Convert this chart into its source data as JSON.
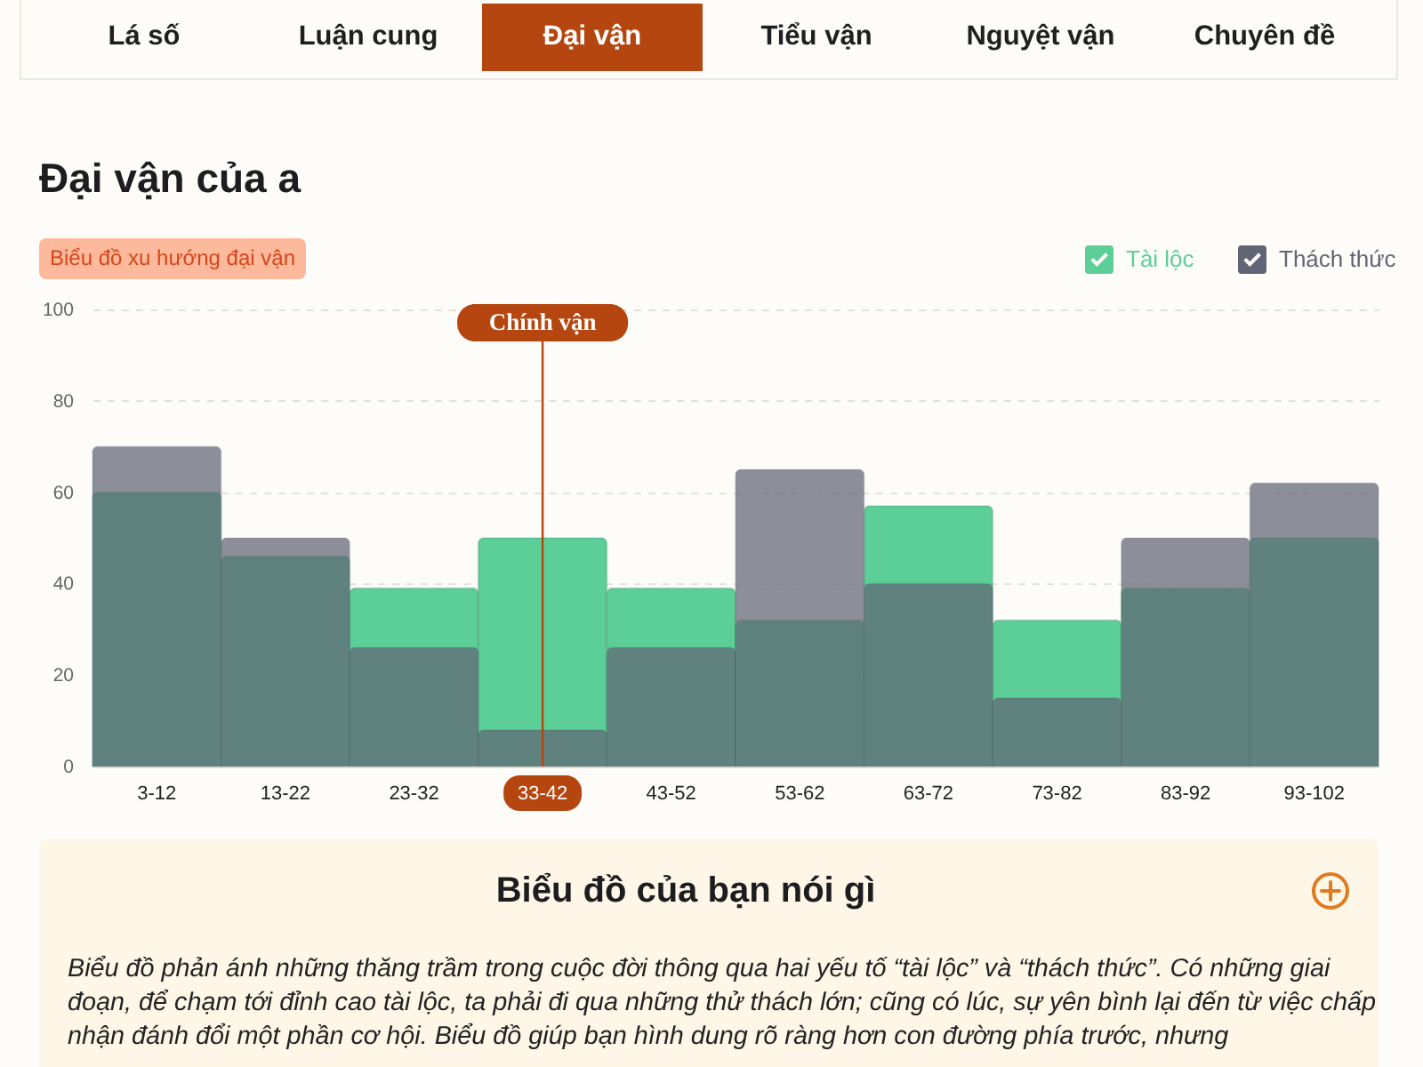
{
  "chart_data": {
    "type": "bar",
    "title": "Đại vận của a",
    "subtitle": "Biểu đồ xu hướng đại vận",
    "categories": [
      "3-12",
      "13-22",
      "23-32",
      "33-42",
      "43-52",
      "53-62",
      "63-72",
      "73-82",
      "83-92",
      "93-102"
    ],
    "series": [
      {
        "name": "Tài lộc",
        "color": "#5ccf98",
        "values": [
          60,
          46,
          39,
          50,
          39,
          32,
          57,
          32,
          39,
          50
        ]
      },
      {
        "name": "Thách thức",
        "color": "#626575",
        "values": [
          70,
          50,
          26,
          8,
          26,
          65,
          40,
          15,
          50,
          62
        ]
      }
    ],
    "ylim": [
      0,
      100
    ],
    "yticks": [
      0,
      20,
      40,
      60,
      80,
      100
    ],
    "grid": "y",
    "legend": "top right",
    "ref_lines": [
      {
        "axis": "x",
        "value": "33-42",
        "label": "Chính vận",
        "color": "#b5460f"
      }
    ],
    "annotations": [
      "Lá số",
      "Luận cung",
      "Đại vận",
      "Tiểu vận",
      "Nguyệt vận",
      "Chuyên đề",
      "Biểu đồ của bạn nói gì",
      "Biểu đồ phản ánh những thăng trầm trong cuộc đời thông qua hai yếu tố “tài lộc” và “thách thức”. Có những giai đoạn, để chạm tới đỉnh cao tài lộc, ta phải đi qua những thử thách lớn; cũng có lúc, sự yên bình lại đến từ việc chấp nhận đánh đổi một phần cơ hội. Biểu đồ giúp bạn hình dung rõ ràng hơn con đường phía trước, nhưng"
    ]
  }
}
